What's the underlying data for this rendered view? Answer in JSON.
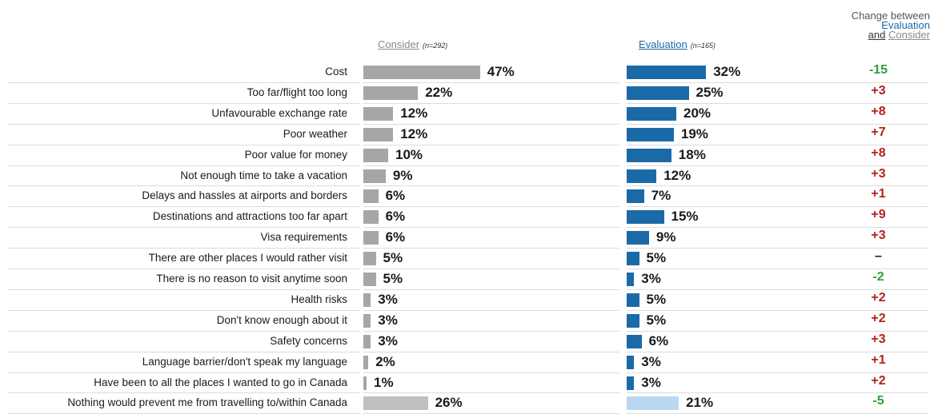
{
  "headers": {
    "consider_label": "Consider",
    "consider_n": "(n=292)",
    "evaluation_label": "Evaluation",
    "evaluation_n": "(n=165)",
    "change_line1": "Change between",
    "change_line2": "Evaluation",
    "change_line3a": "and",
    "change_line3b": "Consider"
  },
  "colors": {
    "consider": "#a6a6a6",
    "consider_last": "#bfbfbf",
    "evaluation": "#1b6aa8",
    "evaluation_last": "#b9d7f2",
    "positive_change": "#b22222",
    "negative_change": "#2e9e3e"
  },
  "chart_data": {
    "type": "bar",
    "orientation": "horizontal",
    "categories": [
      "Cost",
      "Too far/flight too long",
      "Unfavourable exchange rate",
      "Poor weather",
      "Poor value for money",
      "Not enough time to take a vacation",
      "Delays and hassles at airports and borders",
      "Destinations and attractions too far apart",
      "Visa requirements",
      "There are other places I would rather visit",
      "There is no reason to visit anytime soon",
      "Health risks",
      "Don't know enough about it",
      "Safety concerns",
      "Language barrier/don't speak my language",
      "Have been to all the places I wanted to go in Canada",
      "Nothing would prevent me from travelling to/within Canada"
    ],
    "series": [
      {
        "name": "Consider",
        "values": [
          47,
          22,
          12,
          12,
          10,
          9,
          6,
          6,
          6,
          5,
          5,
          3,
          3,
          3,
          2,
          1,
          26
        ]
      },
      {
        "name": "Evaluation",
        "values": [
          32,
          25,
          20,
          19,
          18,
          12,
          7,
          15,
          9,
          5,
          3,
          5,
          5,
          6,
          3,
          3,
          21
        ]
      }
    ],
    "consider_labels": [
      "47%",
      "22%",
      "12%",
      "12%",
      "10%",
      "9%",
      "6%",
      "6%",
      "6%",
      "5%",
      "5%",
      "3%",
      "3%",
      "3%",
      "2%",
      "1%",
      "26%"
    ],
    "evaluation_labels": [
      "32%",
      "25%",
      "20%",
      "19%",
      "18%",
      "12%",
      "7%",
      "15%",
      "9%",
      "5%",
      "3%",
      "5%",
      "5%",
      "6%",
      "3%",
      "3%",
      "21%"
    ],
    "change": [
      "-15",
      "+3",
      "+8",
      "+7",
      "+8",
      "+3",
      "+1",
      "+9",
      "+3",
      "–",
      "-2",
      "+2",
      "+2",
      "+3",
      "+1",
      "+2",
      "-5"
    ],
    "ylim": [
      0,
      100
    ]
  }
}
